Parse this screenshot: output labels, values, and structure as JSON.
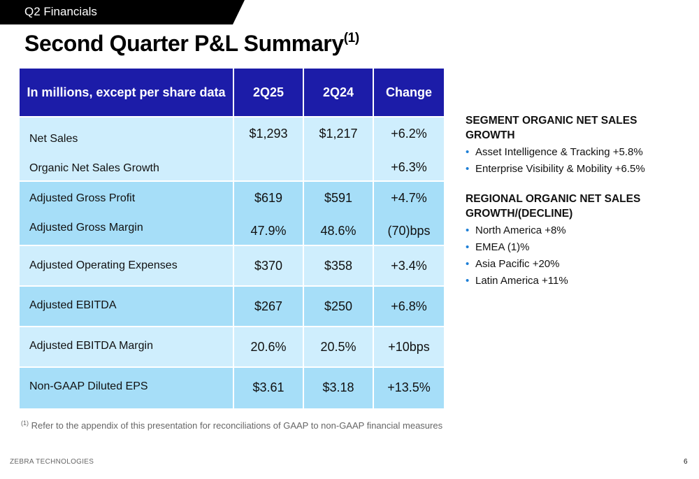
{
  "section": "Q2 Financials",
  "title": "Second Quarter P&L Summary",
  "title_sup": "(1)",
  "table": {
    "headers": [
      "In millions, except per share data",
      "2Q25",
      "2Q24",
      "Change"
    ],
    "rows": [
      {
        "label": "Net Sales",
        "q25": "$1,293",
        "q24": "$1,217",
        "change": "+6.2%"
      },
      {
        "label": "Organic Net Sales Growth",
        "q25": "",
        "q24": "",
        "change": "+6.3%"
      },
      {
        "label": "Adjusted Gross Profit",
        "q25": "$619",
        "q24": "$591",
        "change": "+4.7%"
      },
      {
        "label": "Adjusted Gross Margin",
        "q25": "47.9%",
        "q24": "48.6%",
        "change": "(70)bps"
      },
      {
        "label": "Adjusted Operating Expenses",
        "q25": "$370",
        "q24": "$358",
        "change": "+3.4%"
      },
      {
        "label": "Adjusted EBITDA",
        "q25": "$267",
        "q24": "$250",
        "change": "+6.8%"
      },
      {
        "label": "Adjusted EBITDA Margin",
        "q25": "20.6%",
        "q24": "20.5%",
        "change": "+10bps"
      },
      {
        "label": "Non-GAAP Diluted EPS",
        "q25": "$3.61",
        "q24": "$3.18",
        "change": "+13.5%"
      }
    ]
  },
  "footnote": {
    "sup": "(1)",
    "text": "Refer to the appendix of this presentation for reconciliations of GAAP to non-GAAP financial measures"
  },
  "segment": {
    "heading": "SEGMENT ORGANIC NET SALES GROWTH",
    "items": [
      "Asset Intelligence & Tracking +5.8%",
      "Enterprise Visibility & Mobility +6.5%"
    ]
  },
  "regional": {
    "heading_line1": "REGIONAL ORGANIC NET SALES",
    "heading_line2": "GROWTH/(DECLINE)",
    "items": [
      "North America +8%",
      "EMEA (1)%",
      "Asia Pacific +20%",
      "Latin America +11%"
    ]
  },
  "footer": {
    "brand": "ZEBRA TECHNOLOGIES",
    "page": "6"
  },
  "colors": {
    "header_blue": "#1c1ca8",
    "row_light": "#cfeefd",
    "row_dark": "#a6def8",
    "bullet": "#1c7ed6"
  }
}
